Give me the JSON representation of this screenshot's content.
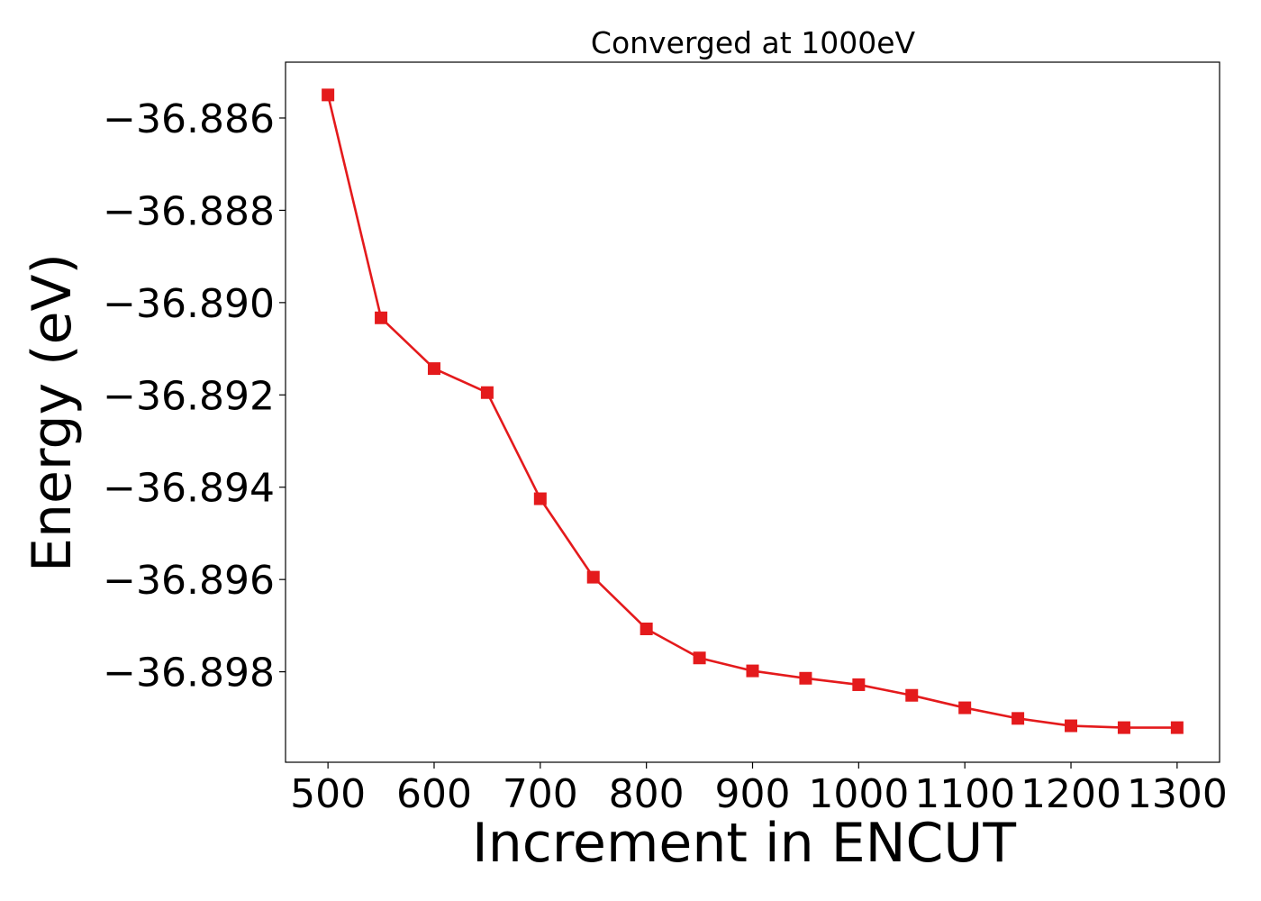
{
  "chart_data": {
    "type": "line",
    "title": "Converged at 1000eV",
    "xlabel": "Increment in ENCUT",
    "ylabel": "Energy (eV)",
    "x": [
      500,
      550,
      600,
      650,
      700,
      750,
      800,
      850,
      900,
      950,
      1000,
      1050,
      1100,
      1150,
      1200,
      1250,
      1300
    ],
    "series": [
      {
        "values": [
          -36.8855,
          -36.89033,
          -36.89143,
          -36.89195,
          -36.89425,
          -36.89595,
          -36.89707,
          -36.8977,
          -36.89798,
          -36.89814,
          -36.89828,
          -36.89851,
          -36.89878,
          -36.89901,
          -36.89917,
          -36.89921,
          -36.89921
        ],
        "color": "#e41a1c",
        "marker": "square"
      }
    ],
    "xlim": [
      460,
      1340
    ],
    "ylim": [
      -36.89996,
      -36.88479
    ],
    "xticks": [
      500,
      600,
      700,
      800,
      900,
      1000,
      1100,
      1200,
      1300
    ],
    "xtick_labels": [
      "500",
      "600",
      "700",
      "800",
      "900",
      "1000",
      "1100",
      "1200",
      "1300"
    ],
    "yticks": [
      -36.886,
      -36.888,
      -36.89,
      -36.892,
      -36.894,
      -36.896,
      -36.898
    ],
    "ytick_labels": [
      "−36.886",
      "−36.888",
      "−36.890",
      "−36.892",
      "−36.894",
      "−36.896",
      "−36.898"
    ],
    "grid": false,
    "legend": false
  }
}
